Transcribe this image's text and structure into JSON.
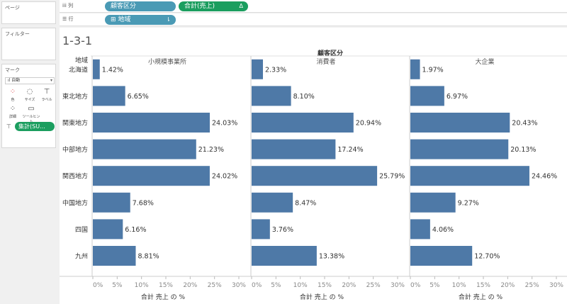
{
  "shelves": {
    "pages_label": "ページ",
    "filters_label": "フィルター",
    "marks_label": "マーク",
    "columns_label": "列",
    "rows_label": "行",
    "columns_pills": [
      "顧客区分",
      "合計(売上)"
    ],
    "rows_pills": [
      "地域"
    ]
  },
  "marks": {
    "type": "自動",
    "buttons": [
      "色",
      "サイズ",
      "ラベル",
      "詳細",
      "ツールヒント"
    ],
    "aggregate_pill": "集計(SU..."
  },
  "colors": {
    "bar": "#4e79a7",
    "pill_blue": "#4a9ab5",
    "pill_green": "#1b9e5f"
  },
  "chart_data": {
    "type": "bar",
    "title": "1-3-1",
    "row_header": "地域",
    "column_header": "顧客区分",
    "categories": [
      "北海道",
      "東北地方",
      "関東地方",
      "中部地方",
      "関西地方",
      "中国地方",
      "四国",
      "九州"
    ],
    "series": [
      {
        "name": "小規模事業所",
        "values": [
          1.42,
          6.65,
          24.03,
          21.23,
          24.02,
          7.68,
          6.16,
          8.81
        ]
      },
      {
        "name": "消費者",
        "values": [
          2.33,
          8.1,
          20.94,
          17.24,
          25.79,
          8.47,
          3.76,
          13.38
        ]
      },
      {
        "name": "大企業",
        "values": [
          1.97,
          6.97,
          20.43,
          20.13,
          24.46,
          9.27,
          4.06,
          12.7
        ]
      }
    ],
    "value_format": "percent_2dp",
    "x_ticks": [
      "0%",
      "5%",
      "10%",
      "15%",
      "20%",
      "25%",
      "30%"
    ],
    "xlim": [
      0,
      30
    ],
    "xlabel": "合計 売上 の %"
  }
}
